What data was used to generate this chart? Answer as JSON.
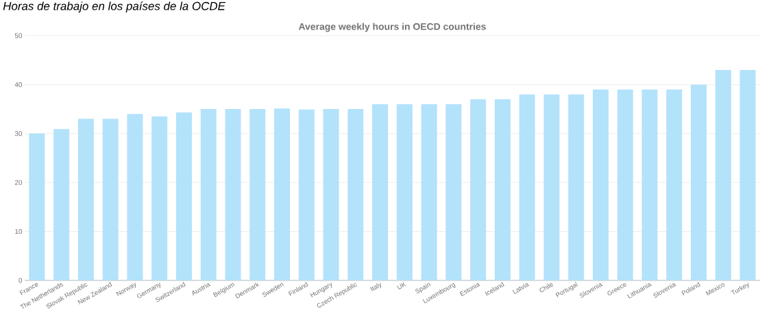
{
  "chart_data": {
    "type": "bar",
    "title": "Average weekly hours in OECD countries",
    "annotations": [
      "Horas de trabajo en los países de la OCDE"
    ],
    "categories": [
      "France",
      "The Netherlands",
      "Slovak Republic",
      "New Zealand",
      "Norway",
      "Germany",
      "Switzerland",
      "Austria",
      "Belgium",
      "Denmark",
      "Sweden",
      "Finland",
      "Hungary",
      "Czech Republic",
      "Italy",
      "UK",
      "Spain",
      "Luxembourg",
      "Estonia",
      "Iceland",
      "Latvia",
      "Chile",
      "Portugal",
      "Slovenia",
      "Greece",
      "Lithuania",
      "Slovenia",
      "Poland",
      "Mexico",
      "Turkey"
    ],
    "values": [
      30,
      30.9,
      33,
      33,
      34,
      33.5,
      34.3,
      35,
      35,
      35,
      35.1,
      34.9,
      35,
      35,
      36,
      36,
      36,
      36,
      37,
      37,
      38,
      38,
      38,
      39,
      39,
      39,
      39,
      40,
      43,
      43
    ],
    "color": "#b3e2fb",
    "ylim": [
      0,
      50
    ],
    "yticks": [
      0,
      10,
      20,
      30,
      40,
      50
    ],
    "grid": "y"
  }
}
